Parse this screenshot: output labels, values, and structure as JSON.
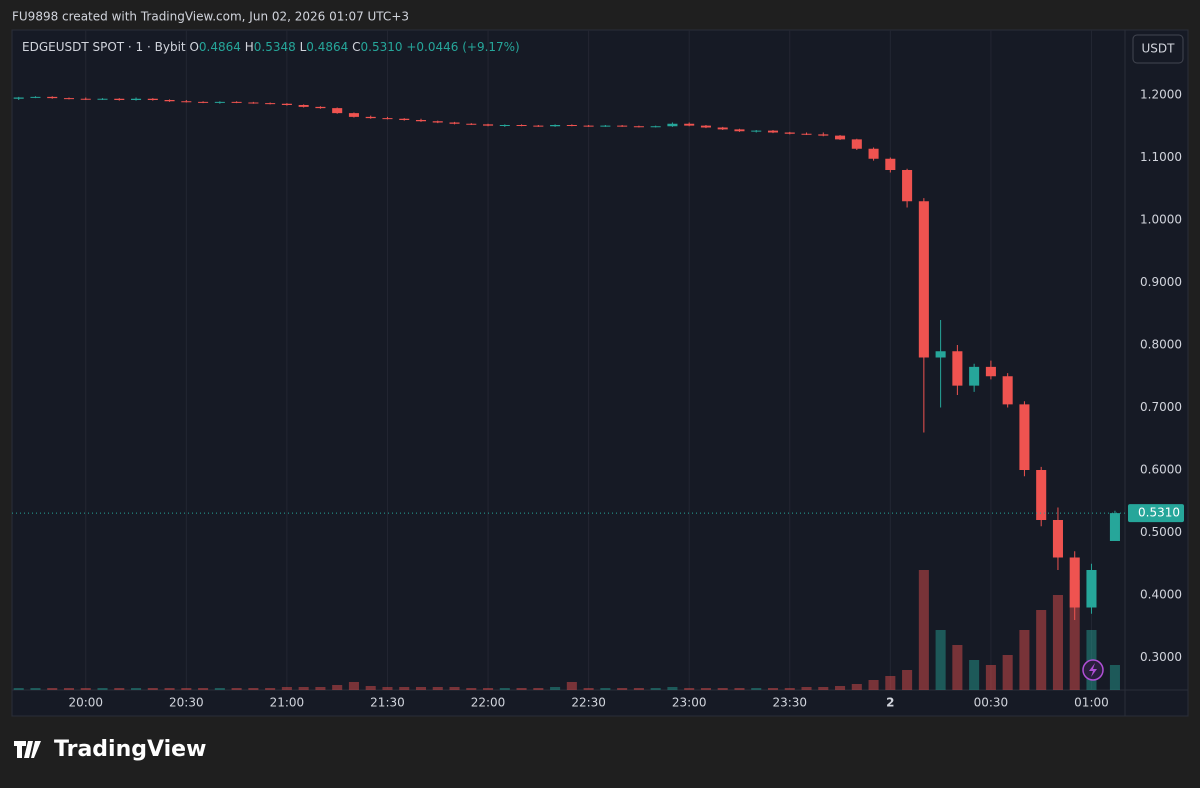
{
  "header": {
    "credit": "FU9898 created with TradingView.com, Jun 02, 2026 01:07 UTC+3"
  },
  "legend": {
    "symbol": "EDGEUSDT SPOT · 1 · Bybit",
    "open_label": "O",
    "open": "0.4864",
    "high_label": "H",
    "high": "0.5348",
    "low_label": "L",
    "low": "0.4864",
    "close_label": "C",
    "close": "0.5310",
    "change": "+0.0446 (+9.17%)"
  },
  "currency_button": "USDT",
  "footer": {
    "brand": "TradingView"
  },
  "chart_data": {
    "type": "candlestick",
    "up_color": "#26a69a",
    "down_color": "#ef5350",
    "x": [
      "19:40",
      "19:45",
      "19:50",
      "19:55",
      "20:00",
      "20:05",
      "20:10",
      "20:15",
      "20:20",
      "20:25",
      "20:30",
      "20:35",
      "20:40",
      "20:45",
      "20:50",
      "20:55",
      "21:00",
      "21:05",
      "21:10",
      "21:15",
      "21:20",
      "21:25",
      "21:30",
      "21:35",
      "21:40",
      "21:45",
      "21:50",
      "21:55",
      "22:00",
      "22:05",
      "22:10",
      "22:15",
      "22:20",
      "22:25",
      "22:30",
      "22:35",
      "22:40",
      "22:45",
      "22:50",
      "22:55",
      "23:00",
      "23:05",
      "23:10",
      "23:15",
      "23:20",
      "23:25",
      "23:30",
      "23:35",
      "23:40",
      "23:45",
      "23:50",
      "23:55",
      "00:00",
      "00:05",
      "00:10",
      "00:15",
      "00:20",
      "00:25",
      "00:30",
      "00:35",
      "00:40",
      "00:45",
      "00:50",
      "00:55",
      "01:00",
      "01:07"
    ],
    "open": [
      1.194,
      1.196,
      1.197,
      1.195,
      1.194,
      1.193,
      1.194,
      1.192,
      1.194,
      1.192,
      1.19,
      1.189,
      1.188,
      1.189,
      1.188,
      1.187,
      1.186,
      1.184,
      1.181,
      1.179,
      1.171,
      1.165,
      1.163,
      1.162,
      1.16,
      1.158,
      1.156,
      1.154,
      1.153,
      1.151,
      1.152,
      1.151,
      1.15,
      1.152,
      1.151,
      1.15,
      1.151,
      1.15,
      1.149,
      1.15,
      1.154,
      1.151,
      1.148,
      1.145,
      1.142,
      1.143,
      1.14,
      1.138,
      1.137,
      1.135,
      1.129,
      1.114,
      1.098,
      1.08,
      1.03,
      0.78,
      0.79,
      0.735,
      0.765,
      0.75,
      0.705,
      0.6,
      0.52,
      0.46,
      0.38,
      0.4864
    ],
    "high": [
      1.197,
      1.198,
      1.198,
      1.196,
      1.196,
      1.195,
      1.195,
      1.196,
      1.195,
      1.193,
      1.192,
      1.19,
      1.19,
      1.19,
      1.189,
      1.188,
      1.187,
      1.185,
      1.182,
      1.18,
      1.172,
      1.167,
      1.165,
      1.163,
      1.162,
      1.159,
      1.157,
      1.155,
      1.154,
      1.153,
      1.153,
      1.152,
      1.153,
      1.153,
      1.152,
      1.152,
      1.152,
      1.151,
      1.151,
      1.156,
      1.156,
      1.152,
      1.149,
      1.146,
      1.144,
      1.144,
      1.141,
      1.14,
      1.14,
      1.136,
      1.13,
      1.116,
      1.1,
      1.082,
      1.035,
      0.84,
      0.8,
      0.77,
      0.775,
      0.755,
      0.71,
      0.605,
      0.54,
      0.47,
      0.45,
      0.5348
    ],
    "low": [
      1.192,
      1.195,
      1.194,
      1.193,
      1.192,
      1.192,
      1.191,
      1.191,
      1.191,
      1.189,
      1.188,
      1.187,
      1.186,
      1.187,
      1.186,
      1.185,
      1.183,
      1.18,
      1.178,
      1.17,
      1.164,
      1.162,
      1.161,
      1.159,
      1.157,
      1.155,
      1.153,
      1.152,
      1.15,
      1.149,
      1.15,
      1.149,
      1.149,
      1.15,
      1.149,
      1.149,
      1.149,
      1.148,
      1.148,
      1.149,
      1.15,
      1.147,
      1.144,
      1.141,
      1.14,
      1.139,
      1.137,
      1.136,
      1.134,
      1.128,
      1.112,
      1.095,
      1.076,
      1.02,
      0.66,
      0.7,
      0.72,
      0.725,
      0.745,
      0.7,
      0.59,
      0.51,
      0.44,
      0.36,
      0.37,
      0.4864
    ],
    "close": [
      1.196,
      1.197,
      1.195,
      1.194,
      1.193,
      1.194,
      1.192,
      1.194,
      1.192,
      1.19,
      1.189,
      1.188,
      1.189,
      1.188,
      1.187,
      1.186,
      1.184,
      1.181,
      1.179,
      1.171,
      1.165,
      1.163,
      1.162,
      1.16,
      1.158,
      1.156,
      1.154,
      1.153,
      1.151,
      1.152,
      1.151,
      1.15,
      1.152,
      1.151,
      1.15,
      1.151,
      1.15,
      1.149,
      1.15,
      1.154,
      1.151,
      1.148,
      1.145,
      1.142,
      1.143,
      1.14,
      1.138,
      1.137,
      1.135,
      1.129,
      1.114,
      1.098,
      1.08,
      1.03,
      0.78,
      0.79,
      0.735,
      0.765,
      0.75,
      0.705,
      0.6,
      0.52,
      0.46,
      0.38,
      0.44,
      0.531
    ],
    "volume": [
      2,
      2,
      2,
      2,
      2,
      2,
      2,
      2,
      2,
      2,
      2,
      2,
      2,
      2,
      2,
      2,
      3,
      3,
      3,
      5,
      8,
      4,
      3,
      3,
      3,
      3,
      3,
      2,
      2,
      2,
      2,
      2,
      3,
      8,
      2,
      2,
      2,
      2,
      2,
      3,
      2,
      2,
      2,
      2,
      2,
      2,
      2,
      3,
      3,
      4,
      6,
      10,
      14,
      20,
      120,
      60,
      45,
      30,
      25,
      35,
      60,
      80,
      95,
      110,
      60,
      25
    ],
    "xlim": [
      "19:38",
      "01:10"
    ],
    "xticks": [
      "20:00",
      "20:30",
      "21:00",
      "21:30",
      "22:00",
      "22:30",
      "23:00",
      "23:30",
      {
        "value": "00:00",
        "label": "2"
      },
      "00:30",
      "01:00"
    ],
    "ylim": [
      0.248,
      1.304
    ],
    "yticks": [
      {
        "value": 0.3,
        "label": "0.3000"
      },
      {
        "value": 0.4,
        "label": "0.4000"
      },
      {
        "value": 0.5,
        "label": "0.5000"
      },
      {
        "value": 0.6,
        "label": "0.6000"
      },
      {
        "value": 0.7,
        "label": "0.7000"
      },
      {
        "value": 0.8,
        "label": "0.8000"
      },
      {
        "value": 0.9,
        "label": "0.9000"
      },
      {
        "value": 1.0,
        "label": "1.0000"
      },
      {
        "value": 1.1,
        "label": "1.1000"
      },
      {
        "value": 1.2,
        "label": "1.2000"
      }
    ],
    "last_price": {
      "value": 0.531,
      "label": "0.5310"
    },
    "grid": true
  }
}
